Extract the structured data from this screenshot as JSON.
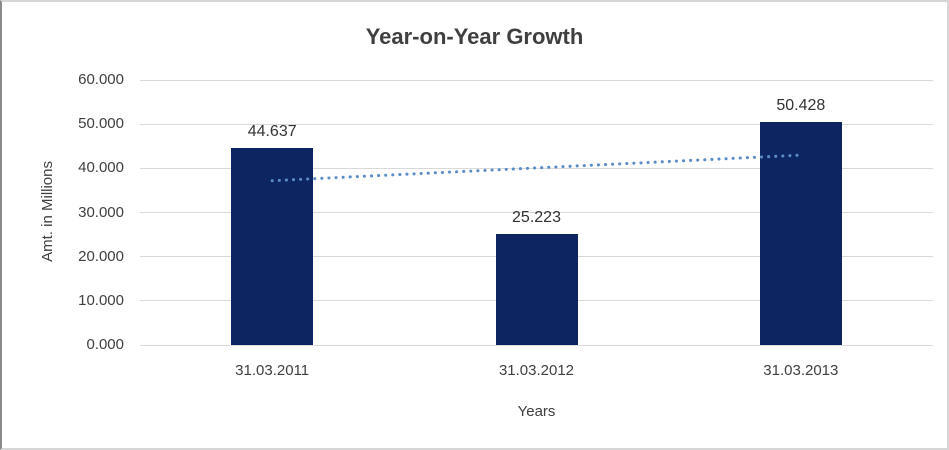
{
  "chart_data": {
    "type": "bar",
    "title": "Year-on-Year Growth",
    "xlabel": "Years",
    "ylabel": "Amt. in Millions",
    "categories": [
      "31.03.2011",
      "31.03.2012",
      "31.03.2013"
    ],
    "values": [
      44.637,
      25.223,
      50.428
    ],
    "data_labels": [
      "44.637",
      "25.223",
      "50.428"
    ],
    "y_tick_values": [
      0,
      10,
      20,
      30,
      40,
      50,
      60
    ],
    "y_tick_labels": [
      "0.000",
      "10.000",
      "20.000",
      "30.000",
      "40.000",
      "50.000",
      "60.000"
    ],
    "ylim": [
      0,
      60
    ],
    "grid": true,
    "legend": "none",
    "bar_color": "#0d2661",
    "gridline_color": "#d9d9d9",
    "text_color": "#3f3f3f",
    "background_color": "#ffffff",
    "trendline": {
      "type": "linear",
      "style": "dotted",
      "color": "#5a8cc8",
      "start_value": 37.2,
      "end_value": 43.0
    }
  }
}
